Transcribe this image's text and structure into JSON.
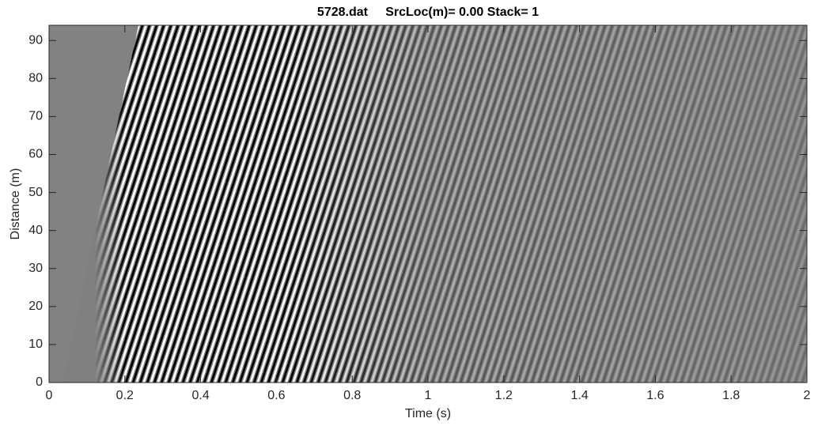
{
  "chart_data": {
    "type": "image",
    "title": "5728.dat     SrcLoc(m)= 0.00 Stack= 1",
    "xlabel": "Time (s)",
    "ylabel": "Distance (m)",
    "xlim": [
      0,
      2
    ],
    "ylim": [
      0,
      94
    ],
    "xticks": [
      0,
      0.2,
      0.4,
      0.6,
      0.8,
      1,
      1.2,
      1.4,
      1.6,
      1.8,
      2
    ],
    "yticks": [
      0,
      10,
      20,
      30,
      40,
      50,
      60,
      70,
      80,
      90
    ],
    "colormap": "gray"
  }
}
